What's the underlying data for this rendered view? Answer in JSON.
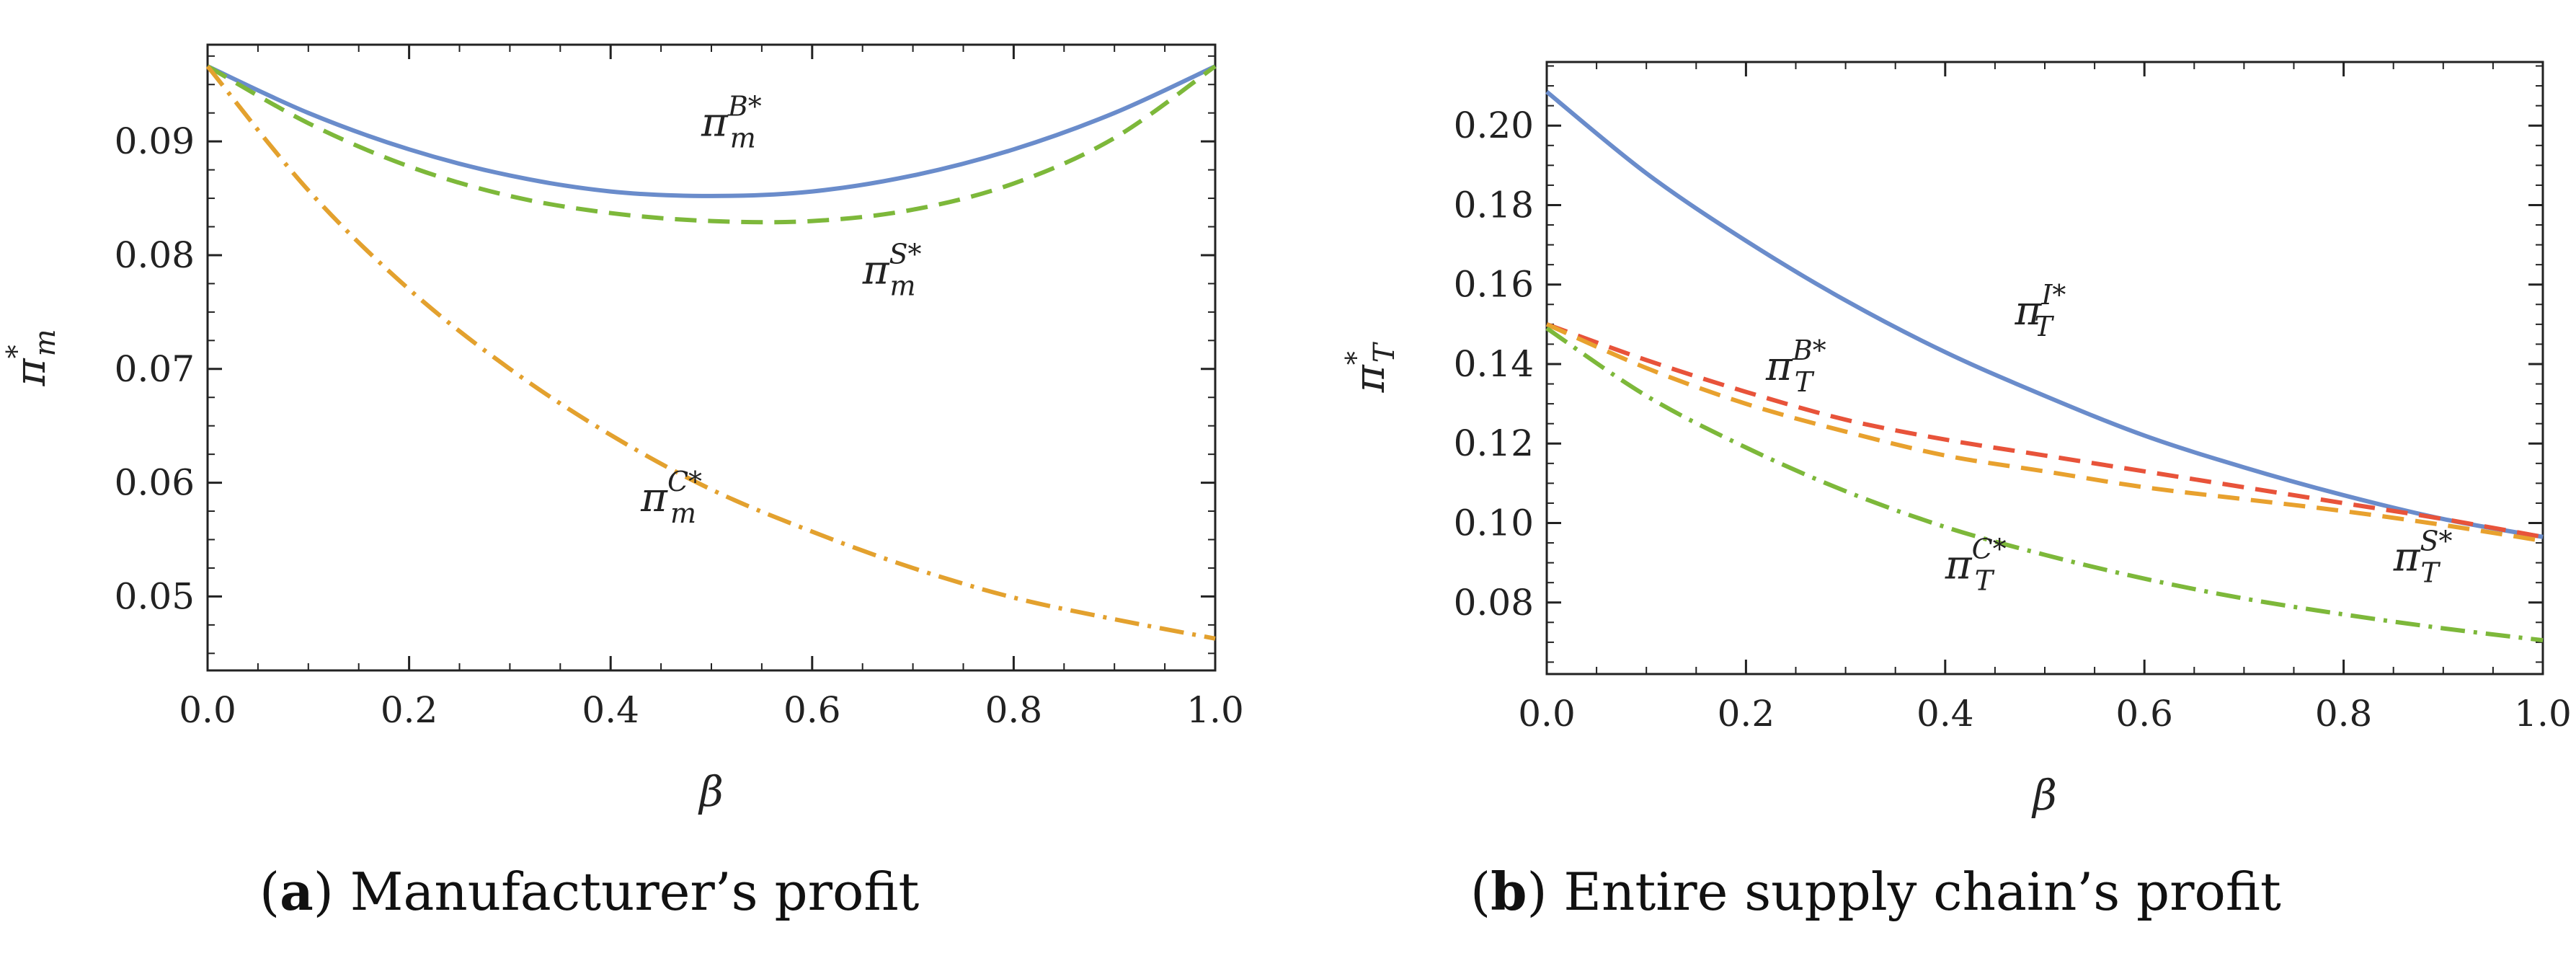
{
  "chart_data": [
    {
      "type": "line",
      "id": "a",
      "title": "",
      "caption": {
        "letter": "a",
        "text": "Manufacturer’s profit"
      },
      "xlabel": "β",
      "ylabel": {
        "base": "π",
        "sup": "*",
        "sub": "m"
      },
      "xlim": [
        0,
        1
      ],
      "ylim": [
        0.0435,
        0.0985
      ],
      "xticks": [
        0.0,
        0.2,
        0.4,
        0.6,
        0.8,
        1.0
      ],
      "xtick_labels": [
        "0.0",
        "0.2",
        "0.4",
        "0.6",
        "0.8",
        "1.0"
      ],
      "yticks": [
        0.05,
        0.06,
        0.07,
        0.08,
        0.09
      ],
      "ytick_labels": [
        "0.05",
        "0.06",
        "0.07",
        "0.08",
        "0.09"
      ],
      "x": [
        0.0,
        0.1,
        0.2,
        0.3,
        0.4,
        0.5,
        0.6,
        0.7,
        0.8,
        0.9,
        1.0
      ],
      "series": [
        {
          "name": "B",
          "style": "solid",
          "color": "#6A8CCB",
          "label": {
            "base": "π",
            "sub": "m",
            "sup": "B*"
          },
          "label_at": [
            0.49,
            0.0905
          ],
          "values": [
            0.0966,
            0.0925,
            0.0893,
            0.087,
            0.0856,
            0.0852,
            0.0856,
            0.087,
            0.0893,
            0.0925,
            0.0966
          ]
        },
        {
          "name": "S",
          "style": "dashed",
          "color": "#7DB83A",
          "label": {
            "base": "π",
            "sub": "m",
            "sup": "S*"
          },
          "label_at": [
            0.65,
            0.0775
          ],
          "values": [
            0.0966,
            0.0916,
            0.0878,
            0.0852,
            0.0837,
            0.083,
            0.083,
            0.084,
            0.0863,
            0.0903,
            0.0966
          ]
        },
        {
          "name": "C",
          "style": "dashdot",
          "color": "#E3A12E",
          "label": {
            "base": "π",
            "sub": "m",
            "sup": "C*"
          },
          "label_at": [
            0.43,
            0.0575
          ],
          "values": [
            0.0966,
            0.0857,
            0.077,
            0.07,
            0.0642,
            0.0594,
            0.0557,
            0.0525,
            0.0499,
            0.048,
            0.0463
          ]
        }
      ]
    },
    {
      "type": "line",
      "id": "b",
      "title": "",
      "caption": {
        "letter": "b",
        "text": "Entire supply chain’s profit"
      },
      "xlabel": "β",
      "ylabel": {
        "base": "π",
        "sup": "*",
        "sub": "T"
      },
      "xlim": [
        0,
        1
      ],
      "ylim": [
        0.062,
        0.216
      ],
      "xticks": [
        0.0,
        0.2,
        0.4,
        0.6,
        0.8,
        1.0
      ],
      "xtick_labels": [
        "0.0",
        "0.2",
        "0.4",
        "0.6",
        "0.8",
        "1.0"
      ],
      "yticks": [
        0.08,
        0.1,
        0.12,
        0.14,
        0.16,
        0.18,
        0.2
      ],
      "ytick_labels": [
        "0.08",
        "0.10",
        "0.12",
        "0.14",
        "0.16",
        "0.18",
        "0.20"
      ],
      "x": [
        0.0,
        0.1,
        0.2,
        0.3,
        0.4,
        0.5,
        0.6,
        0.7,
        0.8,
        0.9,
        1.0
      ],
      "series": [
        {
          "name": "I",
          "style": "solid",
          "color": "#6A8CCB",
          "label": {
            "base": "π",
            "sub": "T",
            "sup": "I*"
          },
          "label_at": [
            0.47,
            0.15
          ],
          "values": [
            0.2085,
            0.188,
            0.171,
            0.156,
            0.143,
            0.132,
            0.122,
            0.114,
            0.107,
            0.101,
            0.0965
          ]
        },
        {
          "name": "B",
          "style": "dashed",
          "color": "#E8533A",
          "label": {
            "base": "π",
            "sub": "T",
            "sup": "B*"
          },
          "label_at": [
            0.22,
            0.136
          ],
          "values": [
            0.15,
            0.141,
            0.133,
            0.126,
            0.121,
            0.117,
            0.113,
            0.109,
            0.105,
            0.101,
            0.0965
          ]
        },
        {
          "name": "S",
          "style": "dashed",
          "color": "#E8A12E",
          "label": {
            "base": "π",
            "sub": "T",
            "sup": "S*"
          },
          "label_at": [
            0.85,
            0.088
          ],
          "values": [
            0.15,
            0.139,
            0.13,
            0.123,
            0.117,
            0.113,
            0.109,
            0.106,
            0.103,
            0.0995,
            0.0955
          ]
        },
        {
          "name": "C",
          "style": "dashdot",
          "color": "#7DB83A",
          "label": {
            "base": "π",
            "sub": "T",
            "sup": "C*"
          },
          "label_at": [
            0.4,
            0.086
          ],
          "values": [
            0.149,
            0.132,
            0.119,
            0.108,
            0.099,
            0.092,
            0.086,
            0.081,
            0.077,
            0.0735,
            0.0705
          ]
        }
      ]
    }
  ]
}
